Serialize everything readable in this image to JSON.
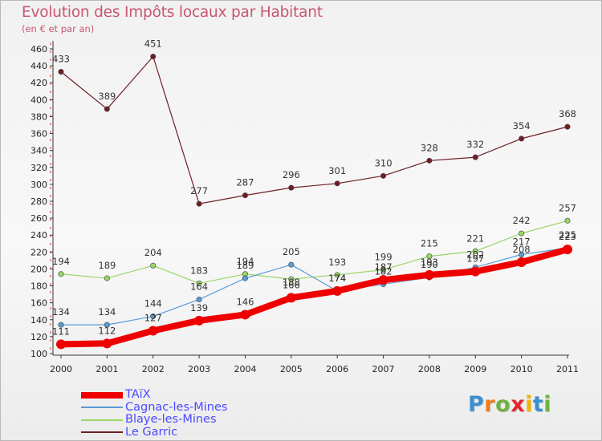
{
  "title": "Evolution des Impôts locaux par Habitant",
  "subtitle": "(en € et par an)",
  "logo": {
    "letters": [
      "P",
      "r",
      "o",
      "x",
      "i",
      "t",
      "i"
    ],
    "colors": [
      "#3a8fd0",
      "#f07a1d",
      "#6db33f",
      "#e2262a",
      "#f4b400",
      "#3a8fd0",
      "#6db33f"
    ]
  },
  "chart_data": {
    "type": "line",
    "title": "Evolution des Impôts locaux par Habitant",
    "subtitle": "(en € et par an)",
    "x": [
      "2000",
      "2001",
      "2002",
      "2003",
      "2004",
      "2005",
      "2006",
      "2007",
      "2008",
      "2009",
      "2010",
      "2011"
    ],
    "ylim": [
      100,
      460
    ],
    "yticks": [
      100,
      120,
      140,
      160,
      180,
      200,
      220,
      240,
      260,
      280,
      300,
      320,
      340,
      360,
      380,
      400,
      420,
      440,
      460
    ],
    "grid": false,
    "legend_position": "bottom-left",
    "series": [
      {
        "name": "Le Garric",
        "color": "#6e1f24",
        "line_width": 1.2,
        "marker_size": 3.2,
        "values": [
          433,
          389,
          451,
          277,
          287,
          296,
          301,
          310,
          328,
          332,
          354,
          368
        ],
        "label_offsets": [
          -12,
          -12,
          -12,
          -12,
          -12,
          -12,
          -12,
          -12,
          -12,
          -12,
          -12,
          -12
        ]
      },
      {
        "name": "Blaye-les-Mines",
        "color": "#99d666",
        "line_width": 1.2,
        "marker_size": 3.2,
        "values": [
          194,
          189,
          204,
          183,
          194,
          188,
          193,
          199,
          215,
          221,
          242,
          257
        ],
        "label_offsets": [
          -12,
          -12,
          -12,
          -12,
          -12,
          8,
          -12,
          -12,
          -12,
          -12,
          -12,
          -12
        ]
      },
      {
        "name": "Cagnac-les-Mines",
        "color": "#5b9bd5",
        "line_width": 1.2,
        "marker_size": 3.2,
        "values": [
          134,
          134,
          144,
          164,
          189,
          205,
          174,
          182,
          190,
          202,
          217,
          225
        ],
        "label_offsets": [
          -12,
          -12,
          -12,
          -12,
          -12,
          -12,
          -12,
          -12,
          -12,
          -12,
          -12,
          -12
        ]
      },
      {
        "name": "TAïX",
        "color": "#ee0000",
        "line_width": 8,
        "marker_size": 6,
        "values": [
          111,
          112,
          127,
          139,
          146,
          166,
          174,
          187,
          193,
          197,
          208,
          223
        ],
        "label_offsets": [
          -12,
          -12,
          -12,
          -12,
          -12,
          -12,
          -12,
          -12,
          -12,
          -12,
          -12,
          -12
        ]
      }
    ],
    "legend": [
      {
        "name": "TAïX",
        "color": "#ee0000",
        "thickness": 8
      },
      {
        "name": "Cagnac-les-Mines",
        "color": "#5b9bd5",
        "thickness": 2
      },
      {
        "name": "Blaye-les-Mines",
        "color": "#99d666",
        "thickness": 2
      },
      {
        "name": "Le Garric",
        "color": "#6e1f24",
        "thickness": 2
      }
    ]
  }
}
